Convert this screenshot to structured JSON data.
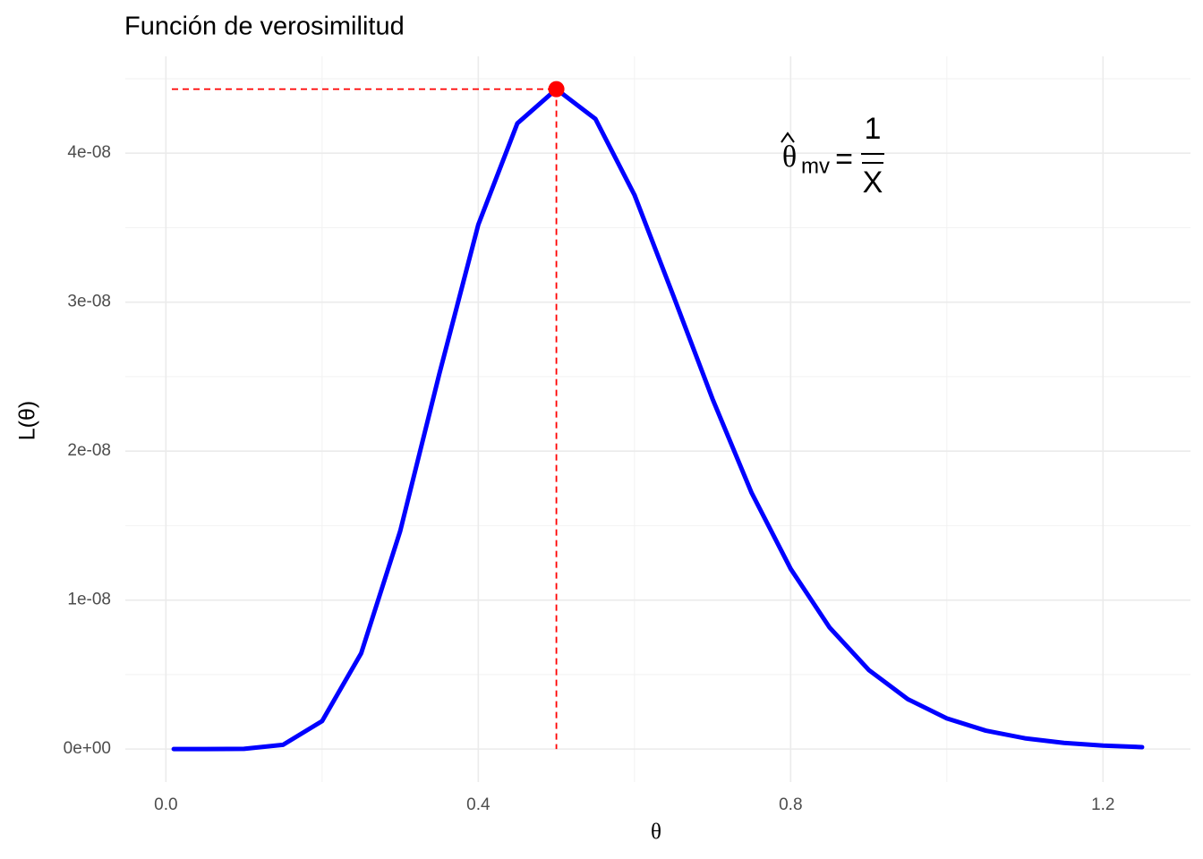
{
  "chart_data": {
    "type": "line",
    "title": "Función de verosimilitud",
    "x_label": "θ",
    "y_label": "L(θ)",
    "x": [
      0.01,
      0.05,
      0.1,
      0.15,
      0.2,
      0.25,
      0.3,
      0.35,
      0.4,
      0.45,
      0.5,
      0.55,
      0.6,
      0.65,
      0.7,
      0.75,
      0.8,
      0.85,
      0.9,
      0.95,
      1.0,
      1.05,
      1.1,
      1.15,
      1.2,
      1.25
    ],
    "values": [
      8e-21,
      3.59e-14,
      1.35e-11,
      2.87e-10,
      1.876e-09,
      6.43e-09,
      1.463e-08,
      2.516e-08,
      3.52e-08,
      4.2e-08,
      4.43e-08,
      4.23e-08,
      3.72e-08,
      3.04e-08,
      2.35e-08,
      1.72e-08,
      1.21e-08,
      8.15e-09,
      5.31e-09,
      3.35e-09,
      2.06e-09,
      1.235e-09,
      7.23e-10,
      4.15e-10,
      2.34e-10,
      1.29e-10
    ],
    "color": "#0000ff",
    "mle": {
      "x": 0.5,
      "y": 4.43e-08,
      "color": "#ff0000"
    },
    "xlim": [
      -0.052,
      1.312
    ],
    "ylim": [
      -2.215e-09,
      4.65e-08
    ],
    "xticks": [
      {
        "value": 0,
        "label": "0.0"
      },
      0.4,
      0.8,
      1.2
    ],
    "yticks": [
      {
        "value": 0,
        "label": "0e+00"
      },
      {
        "value": 1e-08,
        "label": "1e-08"
      },
      {
        "value": 2e-08,
        "label": "2e-08"
      },
      {
        "value": 3e-08,
        "label": "3e-08"
      },
      {
        "value": 4e-08,
        "label": "4e-08"
      }
    ],
    "xminorticks": [
      0.2,
      0.6,
      1.0
    ],
    "yminorticks": [
      5e-09,
      1.5e-08,
      2.5e-08,
      3.5e-08,
      4.5e-08
    ],
    "grid": true,
    "annotation": {
      "lhs": "θ",
      "subscript": "mv",
      "equals": "=",
      "numerator": "1",
      "denominator": "X"
    }
  }
}
